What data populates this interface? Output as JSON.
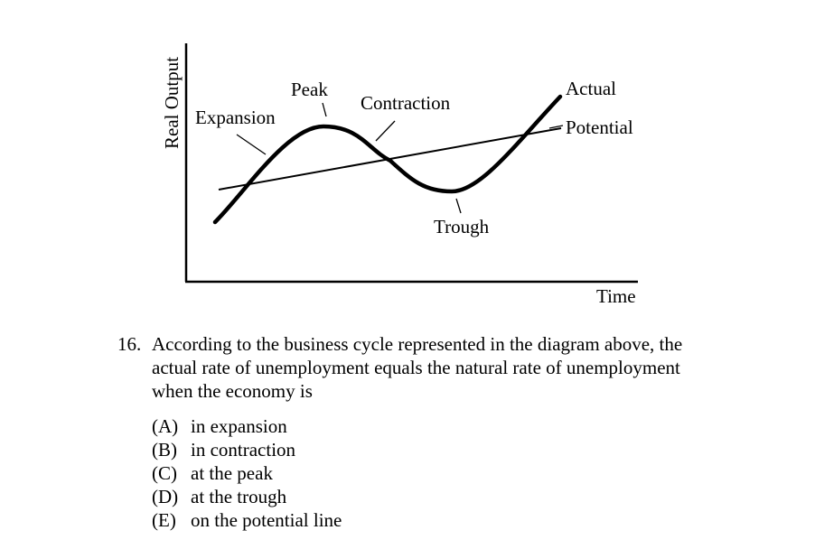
{
  "diagram": {
    "y_axis_label": "Real Output",
    "x_axis_label": "Time",
    "labels": {
      "expansion": "Expansion",
      "peak": "Peak",
      "contraction": "Contraction",
      "trough": "Trough",
      "actual": "Actual",
      "potential": "Potential"
    }
  },
  "question": {
    "number": "16.",
    "text": "According to the business cycle represented in the diagram above, the actual rate of unemployment equals the natural rate of unemployment when the economy is",
    "choices": [
      {
        "letter": "(A)",
        "text": "in expansion"
      },
      {
        "letter": "(B)",
        "text": "in contraction"
      },
      {
        "letter": "(C)",
        "text": "at the peak"
      },
      {
        "letter": "(D)",
        "text": "at the trough"
      },
      {
        "letter": "(E)",
        "text": "on the potential line"
      }
    ]
  }
}
